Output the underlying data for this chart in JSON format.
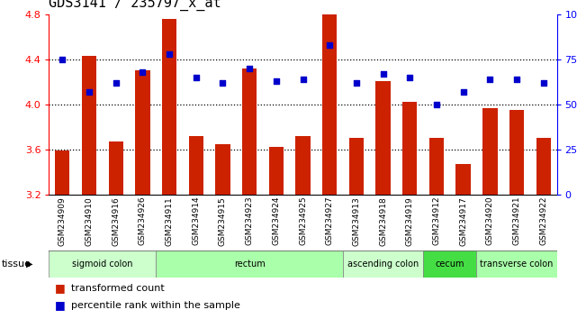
{
  "title": "GDS3141 / 235797_x_at",
  "samples": [
    "GSM234909",
    "GSM234910",
    "GSM234916",
    "GSM234926",
    "GSM234911",
    "GSM234914",
    "GSM234915",
    "GSM234923",
    "GSM234924",
    "GSM234925",
    "GSM234927",
    "GSM234913",
    "GSM234918",
    "GSM234919",
    "GSM234912",
    "GSM234917",
    "GSM234920",
    "GSM234921",
    "GSM234922"
  ],
  "bar_values": [
    3.59,
    4.43,
    3.67,
    4.3,
    4.76,
    3.72,
    3.65,
    4.32,
    3.62,
    3.72,
    4.8,
    3.7,
    4.21,
    4.02,
    3.7,
    3.47,
    3.97,
    3.95,
    3.7
  ],
  "dot_values": [
    75,
    57,
    62,
    68,
    78,
    65,
    62,
    70,
    63,
    64,
    83,
    62,
    67,
    65,
    50,
    57,
    64,
    64,
    62
  ],
  "ylim_left": [
    3.2,
    4.8
  ],
  "ylim_right": [
    0,
    100
  ],
  "yticks_left": [
    3.2,
    3.6,
    4.0,
    4.4,
    4.8
  ],
  "yticks_right": [
    0,
    25,
    50,
    75,
    100
  ],
  "ytick_labels_right": [
    "0",
    "25",
    "50",
    "75",
    "100%"
  ],
  "hlines": [
    3.6,
    4.0,
    4.4
  ],
  "bar_color": "#cc2200",
  "dot_color": "#0000cc",
  "tissue_groups": [
    {
      "label": "sigmoid colon",
      "start": 0,
      "end": 3,
      "color": "#ccffcc"
    },
    {
      "label": "rectum",
      "start": 4,
      "end": 10,
      "color": "#aaffaa"
    },
    {
      "label": "ascending colon",
      "start": 11,
      "end": 13,
      "color": "#ccffcc"
    },
    {
      "label": "cecum",
      "start": 14,
      "end": 15,
      "color": "#44dd44"
    },
    {
      "label": "transverse colon",
      "start": 16,
      "end": 18,
      "color": "#aaffaa"
    }
  ],
  "legend_bar_label": "transformed count",
  "legend_dot_label": "percentile rank within the sample",
  "tissue_label": "tissue",
  "xtick_bg_color": "#c8c8c8",
  "title_fontsize": 11,
  "bar_width": 0.55
}
